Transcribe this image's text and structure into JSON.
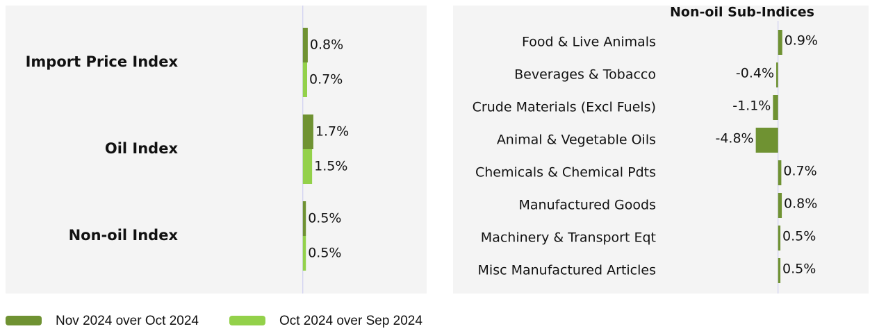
{
  "chart_data": [
    {
      "type": "hbar-grouped",
      "categories": [
        "Import Price Index",
        "Oil Index",
        "Non-oil Index"
      ],
      "series": [
        {
          "name": "Nov 2024 over Oct 2024",
          "color": "#6f9232",
          "values": [
            0.8,
            1.7,
            0.5
          ],
          "value_labels": [
            "0.8%",
            "1.7%",
            "0.5%"
          ]
        },
        {
          "name": "Oct 2024 over Sep 2024",
          "color": "#93d14a",
          "values": [
            0.7,
            1.5,
            0.5
          ],
          "value_labels": [
            "0.7%",
            "1.5%",
            "0.5%"
          ]
        }
      ],
      "xlim": [
        -48,
        20
      ]
    },
    {
      "type": "hbar",
      "title": "Non-oil Sub-Indices",
      "categories": [
        "Food & Live Animals",
        "Beverages & Tobacco",
        "Crude Materials (Excl Fuels)",
        "Animal & Vegetable Oils",
        "Chemicals & Chemical Pdts",
        "Manufactured Goods",
        "Machinery & Transport Eqt",
        "Misc Manufactured Articles"
      ],
      "values": [
        0.9,
        -0.4,
        -1.1,
        -4.8,
        0.7,
        0.8,
        0.5,
        0.5
      ],
      "value_labels": [
        "0.9%",
        "-0.4%",
        "-1.1%",
        "-4.8%",
        "0.7%",
        "0.8%",
        "0.5%",
        "0.5%"
      ],
      "color": "#6f9232",
      "xlim": [
        -70,
        19.5
      ]
    }
  ]
}
